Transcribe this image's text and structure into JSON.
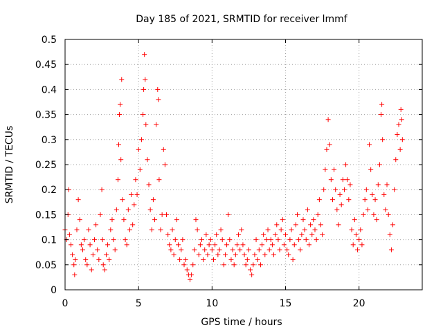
{
  "chart_data": {
    "type": "scatter",
    "title": "Day 185 of 2021, SRMTID for receiver lmmf",
    "xlabel": "GPS time / hours",
    "ylabel": "SRMTID / TECUs",
    "xlim": [
      0,
      24.3
    ],
    "ylim": [
      0,
      0.5
    ],
    "xticks": [
      0,
      5,
      10,
      15,
      20
    ],
    "yticks": [
      0,
      0.05,
      0.1,
      0.15,
      0.2,
      0.25,
      0.3,
      0.35,
      0.4,
      0.45,
      0.5
    ],
    "xtick_labels": [
      "0",
      "5",
      "10",
      "15",
      "20"
    ],
    "ytick_labels": [
      "0",
      "0.05",
      "0.1",
      "0.15",
      "0.2",
      "0.25",
      "0.3",
      "0.35",
      "0.4",
      "0.45",
      "0.5"
    ],
    "grid": true,
    "marker": "+",
    "color": "#ff0000",
    "series": [
      {
        "name": "SRMTID",
        "points": [
          [
            0.0,
            0.12
          ],
          [
            0.1,
            0.1
          ],
          [
            0.2,
            0.15
          ],
          [
            0.25,
            0.2
          ],
          [
            0.3,
            0.11
          ],
          [
            0.4,
            0.09
          ],
          [
            0.5,
            0.07
          ],
          [
            0.6,
            0.05
          ],
          [
            0.65,
            0.03
          ],
          [
            0.7,
            0.06
          ],
          [
            0.8,
            0.12
          ],
          [
            0.9,
            0.18
          ],
          [
            1.0,
            0.14
          ],
          [
            1.1,
            0.09
          ],
          [
            1.2,
            0.08
          ],
          [
            1.3,
            0.1
          ],
          [
            1.4,
            0.06
          ],
          [
            1.5,
            0.05
          ],
          [
            1.6,
            0.12
          ],
          [
            1.7,
            0.09
          ],
          [
            1.8,
            0.04
          ],
          [
            1.9,
            0.07
          ],
          [
            2.0,
            0.1
          ],
          [
            2.1,
            0.13
          ],
          [
            2.2,
            0.08
          ],
          [
            2.3,
            0.06
          ],
          [
            2.4,
            0.15
          ],
          [
            2.5,
            0.2
          ],
          [
            2.55,
            0.1
          ],
          [
            2.6,
            0.05
          ],
          [
            2.7,
            0.04
          ],
          [
            2.8,
            0.07
          ],
          [
            2.9,
            0.09
          ],
          [
            3.0,
            0.06
          ],
          [
            3.1,
            0.12
          ],
          [
            3.2,
            0.14
          ],
          [
            3.3,
            0.1
          ],
          [
            3.4,
            0.08
          ],
          [
            3.5,
            0.16
          ],
          [
            3.6,
            0.22
          ],
          [
            3.65,
            0.29
          ],
          [
            3.7,
            0.35
          ],
          [
            3.75,
            0.37
          ],
          [
            3.8,
            0.26
          ],
          [
            3.85,
            0.42
          ],
          [
            3.9,
            0.18
          ],
          [
            4.0,
            0.14
          ],
          [
            4.1,
            0.1
          ],
          [
            4.2,
            0.09
          ],
          [
            4.3,
            0.16
          ],
          [
            4.4,
            0.12
          ],
          [
            4.5,
            0.19
          ],
          [
            4.6,
            0.13
          ],
          [
            4.7,
            0.17
          ],
          [
            4.8,
            0.22
          ],
          [
            4.9,
            0.19
          ],
          [
            5.0,
            0.28
          ],
          [
            5.1,
            0.24
          ],
          [
            5.2,
            0.3
          ],
          [
            5.3,
            0.35
          ],
          [
            5.35,
            0.4
          ],
          [
            5.4,
            0.47
          ],
          [
            5.45,
            0.42
          ],
          [
            5.5,
            0.33
          ],
          [
            5.6,
            0.26
          ],
          [
            5.7,
            0.21
          ],
          [
            5.8,
            0.16
          ],
          [
            5.9,
            0.12
          ],
          [
            6.0,
            0.18
          ],
          [
            6.1,
            0.14
          ],
          [
            6.2,
            0.33
          ],
          [
            6.3,
            0.4
          ],
          [
            6.35,
            0.38
          ],
          [
            6.4,
            0.22
          ],
          [
            6.5,
            0.12
          ],
          [
            6.6,
            0.15
          ],
          [
            6.7,
            0.28
          ],
          [
            6.8,
            0.25
          ],
          [
            6.9,
            0.15
          ],
          [
            7.0,
            0.11
          ],
          [
            7.1,
            0.09
          ],
          [
            7.2,
            0.08
          ],
          [
            7.3,
            0.12
          ],
          [
            7.4,
            0.07
          ],
          [
            7.5,
            0.1
          ],
          [
            7.6,
            0.14
          ],
          [
            7.7,
            0.09
          ],
          [
            7.8,
            0.06
          ],
          [
            7.9,
            0.08
          ],
          [
            8.0,
            0.1
          ],
          [
            8.1,
            0.05
          ],
          [
            8.2,
            0.06
          ],
          [
            8.3,
            0.04
          ],
          [
            8.4,
            0.03
          ],
          [
            8.5,
            0.02
          ],
          [
            8.6,
            0.03
          ],
          [
            8.7,
            0.05
          ],
          [
            8.8,
            0.08
          ],
          [
            8.9,
            0.14
          ],
          [
            9.0,
            0.12
          ],
          [
            9.1,
            0.07
          ],
          [
            9.2,
            0.09
          ],
          [
            9.3,
            0.1
          ],
          [
            9.4,
            0.06
          ],
          [
            9.5,
            0.08
          ],
          [
            9.6,
            0.11
          ],
          [
            9.7,
            0.07
          ],
          [
            9.8,
            0.09
          ],
          [
            9.9,
            0.1
          ],
          [
            10.0,
            0.08
          ],
          [
            10.1,
            0.06
          ],
          [
            10.2,
            0.09
          ],
          [
            10.3,
            0.11
          ],
          [
            10.4,
            0.07
          ],
          [
            10.5,
            0.08
          ],
          [
            10.6,
            0.12
          ],
          [
            10.7,
            0.1
          ],
          [
            10.8,
            0.05
          ],
          [
            10.9,
            0.07
          ],
          [
            11.0,
            0.09
          ],
          [
            11.1,
            0.15
          ],
          [
            11.2,
            0.1
          ],
          [
            11.3,
            0.06
          ],
          [
            11.4,
            0.08
          ],
          [
            11.5,
            0.05
          ],
          [
            11.6,
            0.07
          ],
          [
            11.7,
            0.09
          ],
          [
            11.8,
            0.11
          ],
          [
            11.9,
            0.08
          ],
          [
            12.0,
            0.12
          ],
          [
            12.1,
            0.09
          ],
          [
            12.2,
            0.07
          ],
          [
            12.3,
            0.05
          ],
          [
            12.4,
            0.06
          ],
          [
            12.5,
            0.08
          ],
          [
            12.6,
            0.04
          ],
          [
            12.7,
            0.03
          ],
          [
            12.8,
            0.05
          ],
          [
            12.9,
            0.07
          ],
          [
            13.0,
            0.1
          ],
          [
            13.1,
            0.06
          ],
          [
            13.2,
            0.08
          ],
          [
            13.3,
            0.05
          ],
          [
            13.4,
            0.09
          ],
          [
            13.5,
            0.11
          ],
          [
            13.6,
            0.07
          ],
          [
            13.7,
            0.1
          ],
          [
            13.8,
            0.12
          ],
          [
            13.9,
            0.08
          ],
          [
            14.0,
            0.1
          ],
          [
            14.1,
            0.09
          ],
          [
            14.2,
            0.07
          ],
          [
            14.3,
            0.11
          ],
          [
            14.4,
            0.13
          ],
          [
            14.5,
            0.1
          ],
          [
            14.6,
            0.08
          ],
          [
            14.7,
            0.12
          ],
          [
            14.8,
            0.14
          ],
          [
            14.9,
            0.09
          ],
          [
            15.0,
            0.11
          ],
          [
            15.1,
            0.08
          ],
          [
            15.2,
            0.07
          ],
          [
            15.3,
            0.1
          ],
          [
            15.4,
            0.12
          ],
          [
            15.5,
            0.06
          ],
          [
            15.6,
            0.09
          ],
          [
            15.7,
            0.13
          ],
          [
            15.8,
            0.15
          ],
          [
            15.9,
            0.1
          ],
          [
            16.0,
            0.08
          ],
          [
            16.1,
            0.11
          ],
          [
            16.2,
            0.14
          ],
          [
            16.3,
            0.12
          ],
          [
            16.4,
            0.1
          ],
          [
            16.5,
            0.16
          ],
          [
            16.6,
            0.09
          ],
          [
            16.7,
            0.13
          ],
          [
            16.8,
            0.11
          ],
          [
            16.9,
            0.14
          ],
          [
            17.0,
            0.12
          ],
          [
            17.1,
            0.1
          ],
          [
            17.2,
            0.15
          ],
          [
            17.3,
            0.18
          ],
          [
            17.4,
            0.13
          ],
          [
            17.5,
            0.11
          ],
          [
            17.6,
            0.2
          ],
          [
            17.7,
            0.24
          ],
          [
            17.8,
            0.28
          ],
          [
            17.9,
            0.34
          ],
          [
            18.0,
            0.29
          ],
          [
            18.1,
            0.22
          ],
          [
            18.2,
            0.18
          ],
          [
            18.3,
            0.24
          ],
          [
            18.4,
            0.2
          ],
          [
            18.5,
            0.16
          ],
          [
            18.6,
            0.13
          ],
          [
            18.7,
            0.19
          ],
          [
            18.8,
            0.17
          ],
          [
            18.9,
            0.22
          ],
          [
            19.0,
            0.2
          ],
          [
            19.1,
            0.25
          ],
          [
            19.2,
            0.22
          ],
          [
            19.3,
            0.18
          ],
          [
            19.4,
            0.21
          ],
          [
            19.5,
            0.12
          ],
          [
            19.6,
            0.09
          ],
          [
            19.7,
            0.14
          ],
          [
            19.8,
            0.11
          ],
          [
            19.9,
            0.08
          ],
          [
            20.0,
            0.1
          ],
          [
            20.1,
            0.12
          ],
          [
            20.2,
            0.09
          ],
          [
            20.3,
            0.15
          ],
          [
            20.4,
            0.18
          ],
          [
            20.5,
            0.2
          ],
          [
            20.6,
            0.16
          ],
          [
            20.7,
            0.29
          ],
          [
            20.8,
            0.24
          ],
          [
            20.9,
            0.19
          ],
          [
            21.0,
            0.15
          ],
          [
            21.1,
            0.18
          ],
          [
            21.2,
            0.14
          ],
          [
            21.3,
            0.21
          ],
          [
            21.4,
            0.25
          ],
          [
            21.5,
            0.35
          ],
          [
            21.55,
            0.37
          ],
          [
            21.6,
            0.3
          ],
          [
            21.7,
            0.19
          ],
          [
            21.8,
            0.16
          ],
          [
            21.9,
            0.21
          ],
          [
            22.0,
            0.15
          ],
          [
            22.1,
            0.11
          ],
          [
            22.2,
            0.08
          ],
          [
            22.3,
            0.13
          ],
          [
            22.4,
            0.2
          ],
          [
            22.5,
            0.26
          ],
          [
            22.6,
            0.31
          ],
          [
            22.7,
            0.33
          ],
          [
            22.8,
            0.28
          ],
          [
            22.85,
            0.36
          ],
          [
            22.9,
            0.34
          ],
          [
            22.95,
            0.3
          ]
        ]
      }
    ]
  }
}
